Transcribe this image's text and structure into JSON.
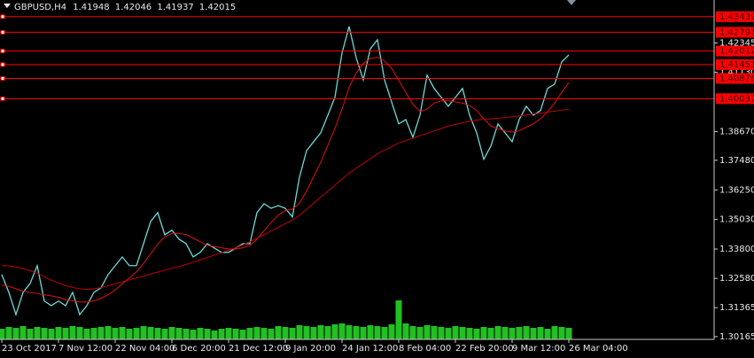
{
  "chart_data": {
    "type": "line",
    "symbol": "GBPUSD,H4",
    "ohlc": [
      1.41948,
      1.42046,
      1.41937,
      1.42015
    ],
    "categories": [
      "23 Oct 2017",
      null,
      null,
      null,
      null,
      null,
      null,
      null,
      "7 Nov 12:00",
      null,
      null,
      null,
      null,
      null,
      null,
      null,
      "22 Nov 04:00",
      null,
      null,
      null,
      null,
      null,
      null,
      null,
      "6 Dec 20:00",
      null,
      null,
      null,
      null,
      null,
      null,
      null,
      "21 Dec 12:00",
      null,
      null,
      null,
      null,
      null,
      null,
      null,
      "9 Jan 20:00",
      null,
      null,
      null,
      null,
      null,
      null,
      null,
      "24 Jan 12:00",
      null,
      null,
      null,
      null,
      null,
      null,
      null,
      "8 Feb 04:00",
      null,
      null,
      null,
      null,
      null,
      null,
      null,
      "22 Feb 20:00",
      null,
      null,
      null,
      null,
      null,
      null,
      null,
      "9 Mar 12:00",
      null,
      null,
      null,
      null,
      null,
      null,
      null,
      "26 Mar 04:00"
    ],
    "series": [
      {
        "color": "#6fd8d8",
        "values": [
          1.3274,
          1.32,
          1.3108,
          1.32,
          1.3237,
          1.3311,
          1.3164,
          1.3145,
          1.3164,
          1.3145,
          1.32,
          1.3108,
          1.3145,
          1.32,
          1.3219,
          1.3274,
          1.3311,
          1.3347,
          1.3311,
          1.3311,
          1.3402,
          1.3494,
          1.3531,
          1.3439,
          1.3458,
          1.3421,
          1.3402,
          1.3347,
          1.3366,
          1.3402,
          1.3384,
          1.3366,
          1.3366,
          1.3384,
          1.3402,
          1.3402,
          1.3531,
          1.3568,
          1.3549,
          1.356,
          1.3549,
          1.3513,
          1.3678,
          1.3788,
          1.3825,
          1.3862,
          1.3935,
          1.4009,
          1.4193,
          1.4303,
          1.4174,
          1.4082,
          1.4211,
          1.4248,
          1.4082,
          1.399,
          1.3899,
          1.3917,
          1.3843,
          1.3935,
          1.4101,
          1.4046,
          1.4009,
          1.3972,
          1.4009,
          1.4046,
          1.3935,
          1.3862,
          1.3752,
          1.3807,
          1.3899,
          1.3862,
          1.3825,
          1.3917,
          1.3972,
          1.3935,
          1.3954,
          1.4046,
          1.4064,
          1.4156,
          1.4185
        ]
      },
      {
        "color": "#e01010",
        "values": [
          1.323,
          1.3225,
          1.3215,
          1.3205,
          1.32,
          1.3195,
          1.319,
          1.3185,
          1.318,
          1.317,
          1.3165,
          1.316,
          1.316,
          1.3165,
          1.3175,
          1.319,
          1.321,
          1.3235,
          1.326,
          1.3285,
          1.332,
          1.336,
          1.34,
          1.343,
          1.3445,
          1.3445,
          1.344,
          1.3425,
          1.341,
          1.3395,
          1.339,
          1.3385,
          1.338,
          1.338,
          1.3385,
          1.3395,
          1.342,
          1.3455,
          1.349,
          1.352,
          1.354,
          1.3545,
          1.357,
          1.362,
          1.368,
          1.374,
          1.381,
          1.388,
          1.396,
          1.405,
          1.411,
          1.415,
          1.417,
          1.4175,
          1.416,
          1.413,
          1.408,
          1.403,
          1.398,
          1.395,
          1.396,
          1.3985,
          1.3995,
          1.3995,
          1.399,
          1.3985,
          1.3975,
          1.3955,
          1.392,
          1.389,
          1.388,
          1.387,
          1.3865,
          1.387,
          1.3885,
          1.39,
          1.392,
          1.395,
          1.3985,
          1.403,
          1.407
        ]
      },
      {
        "color": "#c00000",
        "values": [
          1.3311,
          1.331,
          1.3305,
          1.33,
          1.329,
          1.328,
          1.3265,
          1.325,
          1.324,
          1.3228,
          1.322,
          1.3215,
          1.3212,
          1.3215,
          1.322,
          1.3228,
          1.3236,
          1.3244,
          1.3252,
          1.326,
          1.3268,
          1.3276,
          1.3284,
          1.3292,
          1.33,
          1.3308,
          1.3316,
          1.3325,
          1.3335,
          1.3345,
          1.3355,
          1.3365,
          1.3375,
          1.3385,
          1.3397,
          1.341,
          1.3425,
          1.344,
          1.3455,
          1.347,
          1.3485,
          1.35,
          1.352,
          1.3545,
          1.357,
          1.3595,
          1.362,
          1.3645,
          1.367,
          1.3695,
          1.3715,
          1.3735,
          1.3755,
          1.3775,
          1.379,
          1.3805,
          1.382,
          1.383,
          1.384,
          1.385,
          1.386,
          1.387,
          1.388,
          1.389,
          1.3897,
          1.3904,
          1.391,
          1.3915,
          1.3918,
          1.392,
          1.3922,
          1.3925,
          1.3928,
          1.3932,
          1.3936,
          1.394,
          1.3944,
          1.3948,
          1.3952,
          1.3956,
          1.396
        ]
      }
    ],
    "volume": {
      "color": "#22c022",
      "values": [
        12,
        14,
        13,
        15,
        12,
        14,
        13,
        12,
        14,
        13,
        15,
        14,
        12,
        13,
        14,
        15,
        13,
        14,
        12,
        13,
        15,
        14,
        13,
        12,
        14,
        13,
        12,
        11,
        13,
        12,
        10,
        12,
        13,
        12,
        11,
        13,
        14,
        13,
        12,
        15,
        14,
        13,
        16,
        15,
        14,
        16,
        15,
        17,
        18,
        16,
        15,
        14,
        16,
        15,
        14,
        17,
        44,
        18,
        15,
        14,
        16,
        15,
        14,
        13,
        15,
        14,
        13,
        12,
        14,
        13,
        15,
        14,
        13,
        14,
        15,
        13,
        14,
        12,
        15,
        14,
        13
      ]
    },
    "levels": {
      "color": "#ff0000",
      "values": [
        1.43439,
        1.42791,
        1.42012,
        1.41451,
        1.40876,
        1.40037
      ]
    },
    "ylim": [
      1.3005,
      1.4413
    ],
    "yticks": [
      {
        "value": 1.30165,
        "label": "1.30165"
      },
      {
        "value": 1.31365,
        "label": "1.31365"
      },
      {
        "value": 1.3258,
        "label": "1.32580"
      },
      {
        "value": 1.338,
        "label": "1.33800"
      },
      {
        "value": 1.3503,
        "label": "1.35030"
      },
      {
        "value": 1.3625,
        "label": "1.36250"
      },
      {
        "value": 1.3748,
        "label": "1.37480"
      },
      {
        "value": 1.3867,
        "label": "1.38670"
      },
      {
        "value": 1.4113,
        "label": "1.41130"
      },
      {
        "value": 1.42345,
        "label": "1.42345"
      }
    ],
    "grid": false
  }
}
